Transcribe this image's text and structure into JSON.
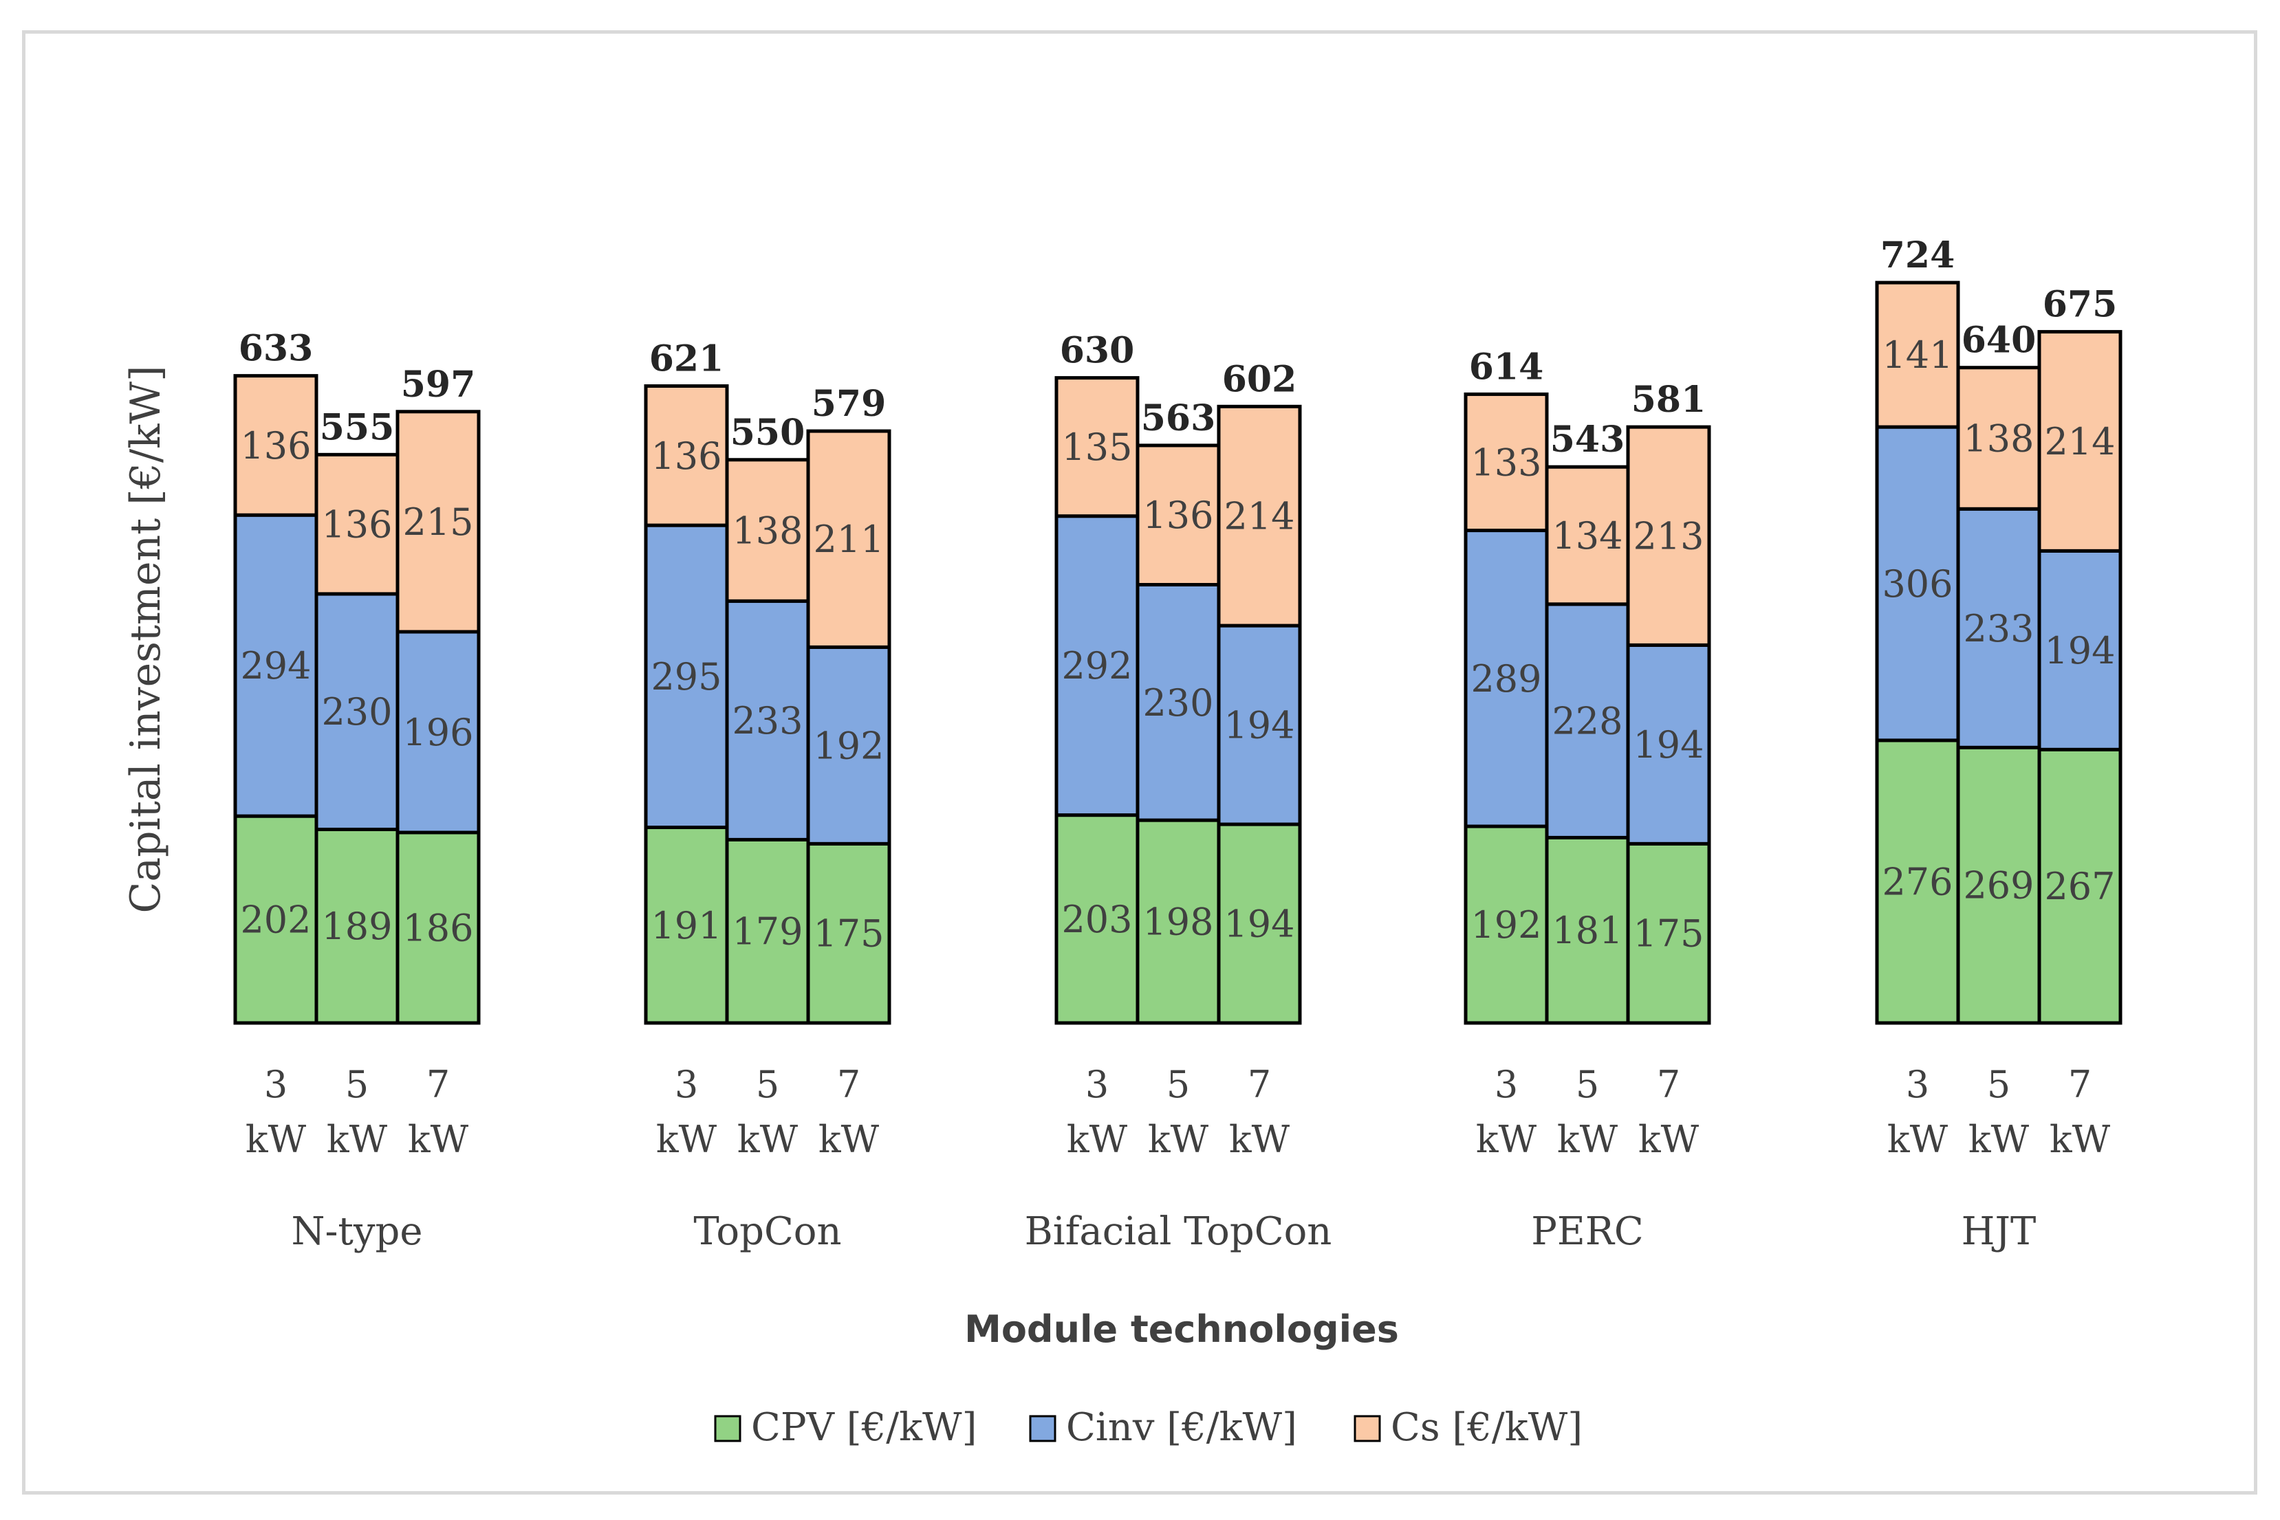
{
  "chart_data": {
    "type": "bar",
    "stacked": true,
    "title": "",
    "xlabel": "Module technologies",
    "ylabel": "Capital investment [€/kW]",
    "ylim": [
      0,
      750
    ],
    "grid": false,
    "legend_position": "bottom",
    "sizes": [
      "3 kW",
      "5 kW",
      "7 kW"
    ],
    "size_lines": [
      [
        "3",
        "kW"
      ],
      [
        "5",
        "kW"
      ],
      [
        "7",
        "kW"
      ]
    ],
    "groups": [
      {
        "name": "N-type",
        "CPV": [
          202,
          189,
          186
        ],
        "Cinv": [
          294,
          230,
          196
        ],
        "Cs": [
          136,
          136,
          215
        ],
        "totals": [
          633,
          555,
          597
        ]
      },
      {
        "name": "TopCon",
        "CPV": [
          191,
          179,
          175
        ],
        "Cinv": [
          295,
          233,
          192
        ],
        "Cs": [
          136,
          138,
          211
        ],
        "totals": [
          621,
          550,
          579
        ]
      },
      {
        "name": "Bifacial TopCon",
        "CPV": [
          203,
          198,
          194
        ],
        "Cinv": [
          292,
          230,
          194
        ],
        "Cs": [
          135,
          136,
          214
        ],
        "totals": [
          630,
          563,
          602
        ]
      },
      {
        "name": "PERC",
        "CPV": [
          192,
          181,
          175
        ],
        "Cinv": [
          289,
          228,
          194
        ],
        "Cs": [
          133,
          134,
          213
        ],
        "totals": [
          614,
          543,
          581
        ]
      },
      {
        "name": "HJT",
        "CPV": [
          276,
          269,
          267
        ],
        "Cinv": [
          306,
          233,
          194
        ],
        "Cs": [
          141,
          138,
          214
        ],
        "totals": [
          724,
          640,
          675
        ]
      }
    ],
    "series": [
      {
        "key": "CPV",
        "name": "CPV [€/kW]",
        "color": "#92d284"
      },
      {
        "key": "Cinv",
        "name": "Cinv [€/kW]",
        "color": "#82a8e0"
      },
      {
        "key": "Cs",
        "name": "Cs [€/kW]",
        "color": "#fbc9a6"
      }
    ]
  }
}
